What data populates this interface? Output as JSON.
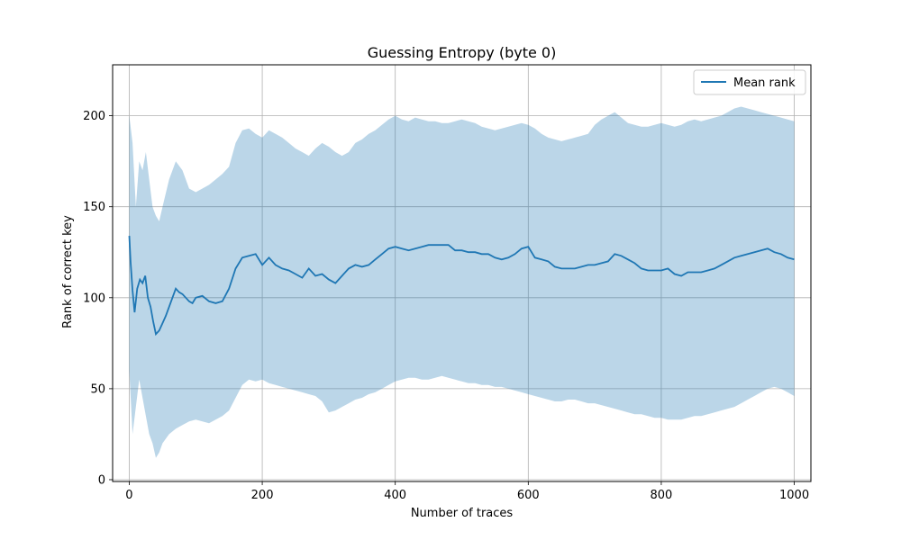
{
  "chart_data": {
    "type": "line",
    "title": "Guessing Entropy (byte 0)",
    "xlabel": "Number of traces",
    "ylabel": "Rank of correct key",
    "xlim": [
      -25,
      1025
    ],
    "ylim": [
      -1,
      228
    ],
    "xticks": [
      0,
      200,
      400,
      600,
      800,
      1000
    ],
    "yticks": [
      0,
      50,
      100,
      150,
      200
    ],
    "grid": true,
    "legend_position": "top-right",
    "colors": {
      "line": "#1f77b4",
      "band": "#1f77b4"
    },
    "series": [
      {
        "name": "Mean rank",
        "x": [
          0,
          2,
          5,
          8,
          12,
          16,
          20,
          24,
          28,
          32,
          36,
          40,
          45,
          50,
          55,
          60,
          65,
          70,
          75,
          80,
          85,
          90,
          95,
          100,
          110,
          120,
          130,
          140,
          150,
          160,
          170,
          180,
          190,
          200,
          210,
          220,
          230,
          240,
          250,
          260,
          270,
          280,
          290,
          300,
          310,
          320,
          330,
          340,
          350,
          360,
          370,
          380,
          390,
          400,
          410,
          420,
          430,
          440,
          450,
          460,
          470,
          480,
          490,
          500,
          510,
          520,
          530,
          540,
          550,
          560,
          570,
          580,
          590,
          600,
          610,
          620,
          630,
          640,
          650,
          660,
          670,
          680,
          690,
          700,
          710,
          720,
          730,
          740,
          750,
          760,
          770,
          780,
          790,
          800,
          810,
          820,
          830,
          840,
          850,
          860,
          870,
          880,
          890,
          900,
          910,
          920,
          930,
          940,
          950,
          960,
          970,
          980,
          990,
          1000
        ],
        "values": [
          134,
          120,
          104,
          92,
          105,
          110,
          108,
          112,
          100,
          95,
          87,
          80,
          82,
          86,
          90,
          95,
          100,
          105,
          103,
          102,
          100,
          98,
          97,
          100,
          101,
          98,
          97,
          98,
          105,
          116,
          122,
          123,
          124,
          118,
          122,
          118,
          116,
          115,
          113,
          111,
          116,
          112,
          113,
          110,
          108,
          112,
          116,
          118,
          117,
          118,
          121,
          124,
          127,
          128,
          127,
          126,
          127,
          128,
          129,
          129,
          129,
          129,
          126,
          126,
          125,
          125,
          124,
          124,
          122,
          121,
          122,
          124,
          127,
          128,
          122,
          121,
          120,
          117,
          116,
          116,
          116,
          117,
          118,
          118,
          119,
          120,
          124,
          123,
          121,
          119,
          116,
          115,
          115,
          115,
          116,
          113,
          112,
          114,
          114,
          114,
          115,
          116,
          118,
          120,
          122,
          123,
          124,
          125,
          126,
          127,
          125,
          124,
          122,
          121
        ]
      }
    ],
    "band": {
      "x": [
        0,
        5,
        10,
        15,
        20,
        25,
        30,
        35,
        40,
        45,
        50,
        60,
        70,
        80,
        90,
        100,
        110,
        120,
        130,
        140,
        150,
        160,
        170,
        180,
        190,
        200,
        210,
        220,
        230,
        240,
        250,
        260,
        270,
        280,
        290,
        300,
        310,
        320,
        330,
        340,
        350,
        360,
        370,
        380,
        390,
        400,
        410,
        420,
        430,
        440,
        450,
        460,
        470,
        480,
        490,
        500,
        510,
        520,
        530,
        540,
        550,
        560,
        570,
        580,
        590,
        600,
        610,
        620,
        630,
        640,
        650,
        660,
        670,
        680,
        690,
        700,
        710,
        720,
        730,
        740,
        750,
        760,
        770,
        780,
        790,
        800,
        810,
        820,
        830,
        840,
        850,
        860,
        870,
        880,
        890,
        900,
        910,
        920,
        930,
        940,
        950,
        960,
        970,
        980,
        990,
        1000
      ],
      "upper": [
        200,
        185,
        150,
        175,
        170,
        180,
        165,
        150,
        145,
        142,
        150,
        165,
        175,
        170,
        160,
        158,
        160,
        162,
        165,
        168,
        172,
        185,
        192,
        193,
        190,
        188,
        192,
        190,
        188,
        185,
        182,
        180,
        178,
        182,
        185,
        183,
        180,
        178,
        180,
        185,
        187,
        190,
        192,
        195,
        198,
        200,
        198,
        197,
        199,
        198,
        197,
        197,
        196,
        196,
        197,
        198,
        197,
        196,
        194,
        193,
        192,
        193,
        194,
        195,
        196,
        195,
        193,
        190,
        188,
        187,
        186,
        187,
        188,
        189,
        190,
        195,
        198,
        200,
        202,
        199,
        196,
        195,
        194,
        194,
        195,
        196,
        195,
        194,
        195,
        197,
        198,
        197,
        198,
        199,
        200,
        202,
        204,
        205,
        204,
        203,
        202,
        201,
        200,
        199,
        198,
        197
      ],
      "lower": [
        60,
        25,
        40,
        55,
        45,
        35,
        25,
        20,
        12,
        15,
        20,
        25,
        28,
        30,
        32,
        33,
        32,
        31,
        33,
        35,
        38,
        45,
        52,
        55,
        54,
        55,
        53,
        52,
        51,
        50,
        49,
        48,
        47,
        46,
        43,
        37,
        38,
        40,
        42,
        44,
        45,
        47,
        48,
        50,
        52,
        54,
        55,
        56,
        56,
        55,
        55,
        56,
        57,
        56,
        55,
        54,
        53,
        53,
        52,
        52,
        51,
        51,
        50,
        49,
        48,
        47,
        46,
        45,
        44,
        43,
        43,
        44,
        44,
        43,
        42,
        42,
        41,
        40,
        39,
        38,
        37,
        36,
        36,
        35,
        34,
        34,
        33,
        33,
        33,
        34,
        35,
        35,
        36,
        37,
        38,
        39,
        40,
        42,
        44,
        46,
        48,
        50,
        51,
        50,
        48,
        46
      ]
    }
  }
}
